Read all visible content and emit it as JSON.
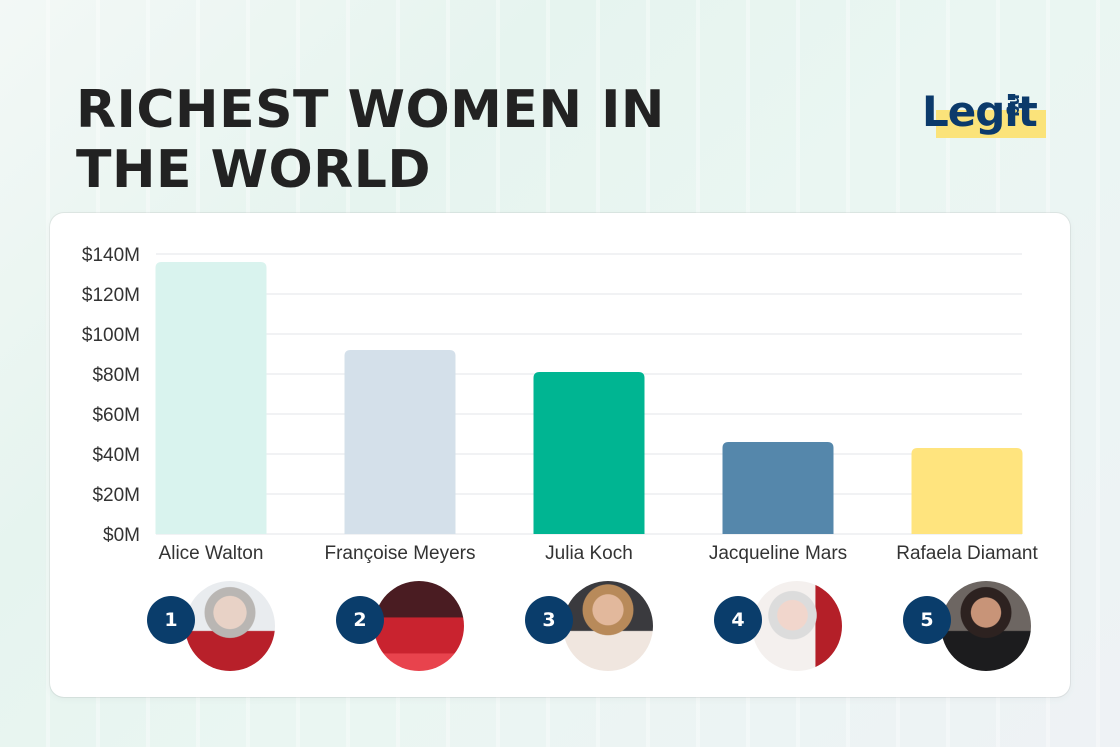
{
  "title": "RICHEST WOMEN IN THE WORLD",
  "logo": {
    "text": "Legit",
    "suffix": "ng"
  },
  "colors": {
    "title": "#222222",
    "logo": "#0b3a6b",
    "logo_highlight": "#fbe37a",
    "badge": "#0a3d6b",
    "gridline": "#e3e6e9",
    "axis_text": "#333333"
  },
  "chart_data": {
    "type": "bar",
    "title": "RICHEST WOMEN IN THE WORLD",
    "xlabel": "",
    "ylabel": "",
    "categories": [
      "Alice Walton",
      "Françoise Meyers",
      "Julia Koch",
      "Jacqueline Mars",
      "Rafaela Diamant"
    ],
    "values": [
      136,
      92,
      81,
      46,
      43
    ],
    "unit": "$M",
    "bar_colors": [
      "#d9f3ee",
      "#d4e0ea",
      "#00b592",
      "#5587ab",
      "#ffe47e"
    ],
    "ylim": [
      0,
      140
    ],
    "yticks": [
      0,
      20,
      40,
      60,
      80,
      100,
      120,
      140
    ],
    "ytick_labels": [
      "$0M",
      "$20M",
      "$40M",
      "$60M",
      "$80M",
      "$100M",
      "$120M",
      "$140M"
    ],
    "grid": true,
    "legend": "none",
    "ranks": [
      "1",
      "2",
      "3",
      "4",
      "5"
    ]
  }
}
